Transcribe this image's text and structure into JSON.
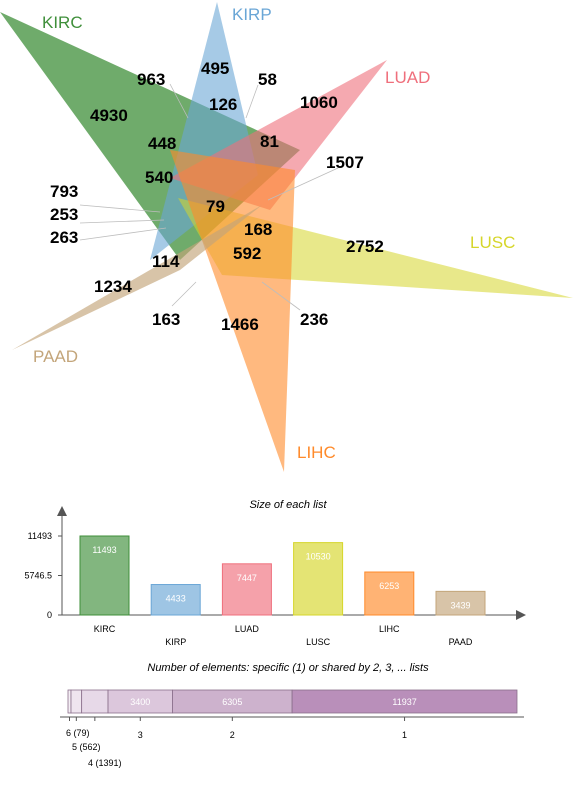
{
  "venn": {
    "sets": [
      {
        "name": "KIRC",
        "color": "#3f8f3a"
      },
      {
        "name": "KIRP",
        "color": "#6aa6d6"
      },
      {
        "name": "LUAD",
        "color": "#ef6f7c"
      },
      {
        "name": "LUSC",
        "color": "#d6d62a"
      },
      {
        "name": "LIHC",
        "color": "#ff8a2a"
      },
      {
        "name": "PAAD",
        "color": "#c3a57a"
      }
    ],
    "numbers": [
      "4930",
      "963",
      "495",
      "58",
      "1060",
      "126",
      "448",
      "81",
      "1507",
      "540",
      "79",
      "793",
      "253",
      "263",
      "168",
      "2752",
      "592",
      "114",
      "1234",
      "163",
      "1466",
      "236"
    ]
  },
  "chart_data": [
    {
      "type": "bar",
      "title": "Size of each list",
      "categories": [
        "KIRC",
        "KIRP",
        "LUAD",
        "LUSC",
        "LIHC",
        "PAAD"
      ],
      "values": [
        11493,
        4433,
        7447,
        10530,
        6253,
        3439
      ],
      "yticks": [
        "11493",
        "5746.5",
        "0"
      ],
      "ylim": [
        0,
        11493
      ],
      "colors": [
        "#3f8f3a",
        "#6aa6d6",
        "#ef6f7c",
        "#d6d62a",
        "#ff8a2a",
        "#c3a57a"
      ],
      "grid": false,
      "legend": "none"
    },
    {
      "type": "bar",
      "title": "Number of elements: specific (1) or shared by 2, 3, ... lists",
      "categories": [
        "6",
        "5",
        "4",
        "3",
        "2",
        "1"
      ],
      "values": [
        79,
        562,
        1391,
        3400,
        6305,
        11937
      ],
      "labels": [
        "6 (79)",
        "5 (562)",
        "4 (1391)",
        "3",
        "2",
        "1"
      ],
      "bar_texts": [
        "",
        "",
        "",
        "3400",
        "6305",
        "11937"
      ],
      "colors": [
        "#f4eef4",
        "#efe5ef",
        "#e7d9e8",
        "#dcc7dc",
        "#cdb2cd",
        "#b98fba"
      ],
      "orientation": "stacked-horizontal"
    }
  ]
}
